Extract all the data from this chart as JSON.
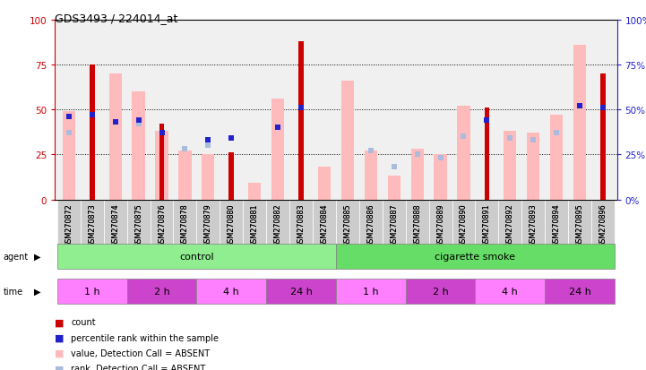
{
  "title": "GDS3493 / 224014_at",
  "samples": [
    "GSM270872",
    "GSM270873",
    "GSM270874",
    "GSM270875",
    "GSM270876",
    "GSM270878",
    "GSM270879",
    "GSM270880",
    "GSM270881",
    "GSM270882",
    "GSM270883",
    "GSM270884",
    "GSM270885",
    "GSM270886",
    "GSM270887",
    "GSM270888",
    "GSM270889",
    "GSM270890",
    "GSM270891",
    "GSM270892",
    "GSM270893",
    "GSM270894",
    "GSM270895",
    "GSM270896"
  ],
  "count": [
    null,
    75,
    null,
    null,
    42,
    null,
    null,
    26,
    null,
    null,
    88,
    null,
    null,
    null,
    null,
    null,
    null,
    null,
    51,
    null,
    null,
    null,
    null,
    70
  ],
  "percentile_rank": [
    46,
    47,
    43,
    44,
    37,
    null,
    33,
    34,
    null,
    40,
    51,
    null,
    null,
    null,
    null,
    null,
    null,
    null,
    44,
    null,
    null,
    null,
    52,
    51
  ],
  "value_absent": [
    49,
    null,
    70,
    60,
    38,
    27,
    25,
    null,
    9,
    56,
    null,
    18,
    66,
    27,
    13,
    28,
    25,
    52,
    null,
    38,
    37,
    47,
    86,
    null
  ],
  "rank_absent": [
    37,
    null,
    43,
    42,
    null,
    28,
    30,
    null,
    null,
    null,
    null,
    null,
    null,
    27,
    18,
    25,
    23,
    35,
    null,
    34,
    33,
    37,
    52,
    null
  ],
  "agent_groups": [
    {
      "label": "control",
      "start": 0,
      "end": 11,
      "color": "#90ee90"
    },
    {
      "label": "cigarette smoke",
      "start": 12,
      "end": 23,
      "color": "#66dd66"
    }
  ],
  "time_groups": [
    {
      "label": "1 h",
      "start": 0,
      "end": 2,
      "color": "#ff80ff"
    },
    {
      "label": "2 h",
      "start": 3,
      "end": 5,
      "color": "#cc44cc"
    },
    {
      "label": "4 h",
      "start": 6,
      "end": 8,
      "color": "#ff80ff"
    },
    {
      "label": "24 h",
      "start": 9,
      "end": 11,
      "color": "#cc44cc"
    },
    {
      "label": "1 h",
      "start": 12,
      "end": 14,
      "color": "#ff80ff"
    },
    {
      "label": "2 h",
      "start": 15,
      "end": 17,
      "color": "#cc44cc"
    },
    {
      "label": "4 h",
      "start": 18,
      "end": 20,
      "color": "#ff80ff"
    },
    {
      "label": "24 h",
      "start": 21,
      "end": 23,
      "color": "#cc44cc"
    }
  ],
  "ylim": [
    0,
    100
  ],
  "yticks": [
    0,
    25,
    50,
    75,
    100
  ],
  "count_color": "#cc0000",
  "percentile_color": "#2222cc",
  "value_absent_color": "#ffbbbb",
  "rank_absent_color": "#aabbdd",
  "left_ylabel_color": "#cc0000",
  "right_ylabel_color": "#2222cc",
  "background_color": "#ffffff",
  "axis_bg_color": "#f0f0f0",
  "xlabel_bg_color": "#cccccc"
}
